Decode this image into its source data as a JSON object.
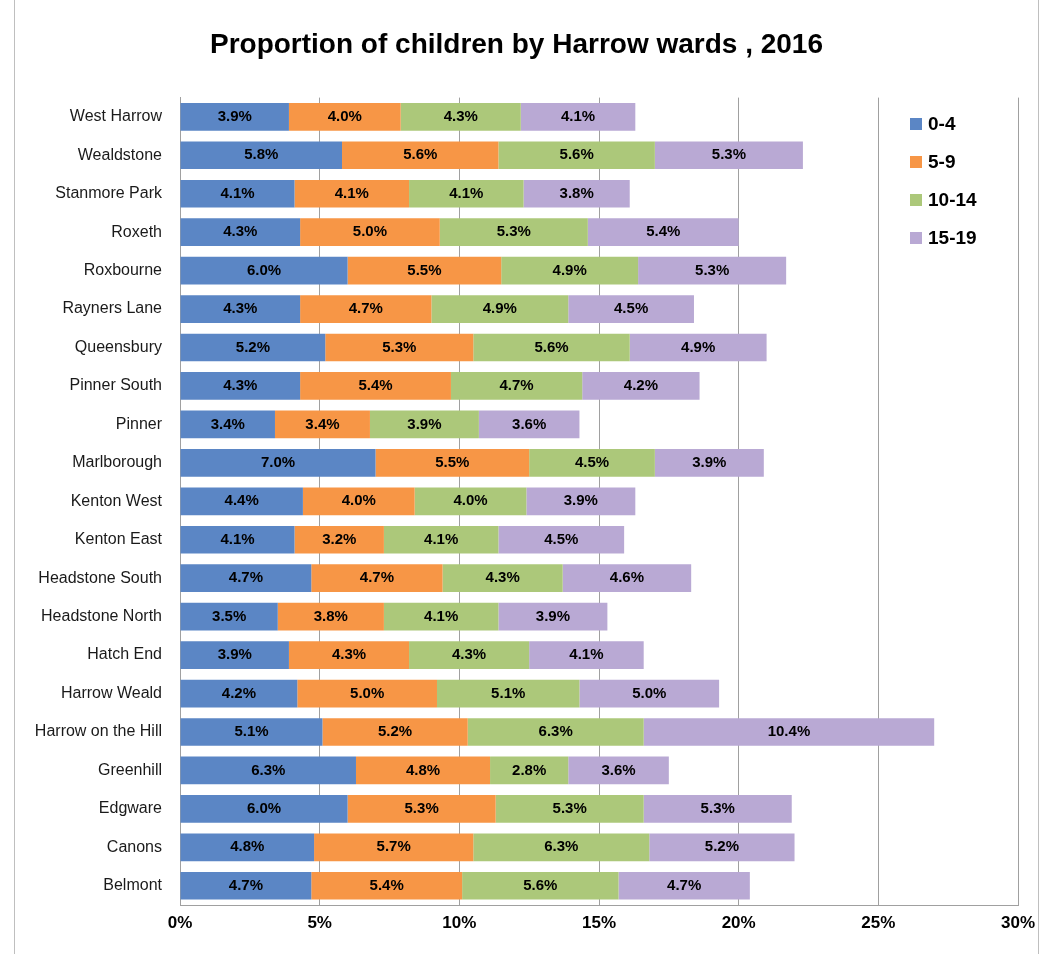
{
  "chart_data": {
    "type": "bar",
    "orientation": "horizontal",
    "stacked": true,
    "title": "Proportion of children by Harrow wards , 2016",
    "categories": [
      "West Harrow",
      "Wealdstone",
      "Stanmore Park",
      "Roxeth",
      "Roxbourne",
      "Rayners Lane",
      "Queensbury",
      "Pinner South",
      "Pinner",
      "Marlborough",
      "Kenton West",
      "Kenton East",
      "Headstone South",
      "Headstone North",
      "Hatch End",
      "Harrow Weald",
      "Harrow on the Hill",
      "Greenhill",
      "Edgware",
      "Canons",
      "Belmont"
    ],
    "series": [
      {
        "name": "0-4",
        "color": "#5b86c5",
        "values": [
          3.9,
          5.8,
          4.1,
          4.3,
          6.0,
          4.3,
          5.2,
          4.3,
          3.4,
          7.0,
          4.4,
          4.1,
          4.7,
          3.5,
          3.9,
          4.2,
          5.1,
          6.3,
          6.0,
          4.8,
          4.7
        ],
        "value_labels": [
          "3.9%",
          "5.8%",
          "4.1%",
          "4.3%",
          "6.0%",
          "4.3%",
          "5.2%",
          "4.3%",
          "3.4%",
          "7.0%",
          "4.4%",
          "4.1%",
          "4.7%",
          "3.5%",
          "3.9%",
          "4.2%",
          "5.1%",
          "6.3%",
          "6.0%",
          "4.8%",
          "4.7%"
        ]
      },
      {
        "name": "5-9",
        "color": "#f79646",
        "values": [
          4.0,
          5.6,
          4.1,
          5.0,
          5.5,
          4.7,
          5.3,
          5.4,
          3.4,
          5.5,
          4.0,
          3.2,
          4.7,
          3.8,
          4.3,
          5.0,
          5.2,
          4.8,
          5.3,
          5.7,
          5.4
        ],
        "value_labels": [
          "4.0%",
          "5.6%",
          "4.1%",
          "5.0%",
          "5.5%",
          "4.7%",
          "5.3%",
          "5.4%",
          "3.4%",
          "5.5%",
          "4.0%",
          "3.2%",
          "4.7%",
          "3.8%",
          "4.3%",
          "5.0%",
          "5.2%",
          "4.8%",
          "5.3%",
          "5.7%",
          "5.4%"
        ]
      },
      {
        "name": "10-14",
        "color": "#acc87a",
        "values": [
          4.3,
          5.6,
          4.1,
          5.3,
          4.9,
          4.9,
          5.6,
          4.7,
          3.9,
          4.5,
          4.0,
          4.1,
          4.3,
          4.1,
          4.3,
          5.1,
          6.3,
          2.8,
          5.3,
          6.3,
          5.6
        ],
        "value_labels": [
          "4.3%",
          "5.6%",
          "4.1%",
          "5.3%",
          "4.9%",
          "4.9%",
          "5.6%",
          "4.7%",
          "3.9%",
          "4.5%",
          "4.0%",
          "4.1%",
          "4.3%",
          "4.1%",
          "4.3%",
          "5.1%",
          "6.3%",
          "2.8%",
          "5.3%",
          "6.3%",
          "5.6%"
        ]
      },
      {
        "name": "15-19",
        "color": "#b9a9d4",
        "values": [
          4.1,
          5.3,
          3.8,
          5.4,
          5.3,
          4.5,
          4.9,
          4.2,
          3.6,
          3.9,
          3.9,
          4.5,
          4.6,
          3.9,
          4.1,
          5.0,
          10.4,
          3.6,
          5.3,
          5.2,
          4.7
        ],
        "value_labels": [
          "4.1%",
          "5.3%",
          "3.8%",
          "5.4%",
          "5.3%",
          "4.5%",
          "4.9%",
          "4.2%",
          "3.6%",
          "3.9%",
          "3.9%",
          "4.5%",
          "4.6%",
          "3.9%",
          "4.1%",
          "5.0%",
          "10.4%",
          "3.6%",
          "5.3%",
          "5.2%",
          "4.7%"
        ]
      }
    ],
    "xlim": [
      0,
      30
    ],
    "xticks": [
      {
        "value": 0,
        "label": "0%"
      },
      {
        "value": 5,
        "label": "5%"
      },
      {
        "value": 10,
        "label": "10%"
      },
      {
        "value": 15,
        "label": "15%"
      },
      {
        "value": 20,
        "label": "20%"
      },
      {
        "value": 25,
        "label": "25%"
      },
      {
        "value": 30,
        "label": "30%"
      }
    ],
    "grid": "x",
    "legend": "top right"
  }
}
